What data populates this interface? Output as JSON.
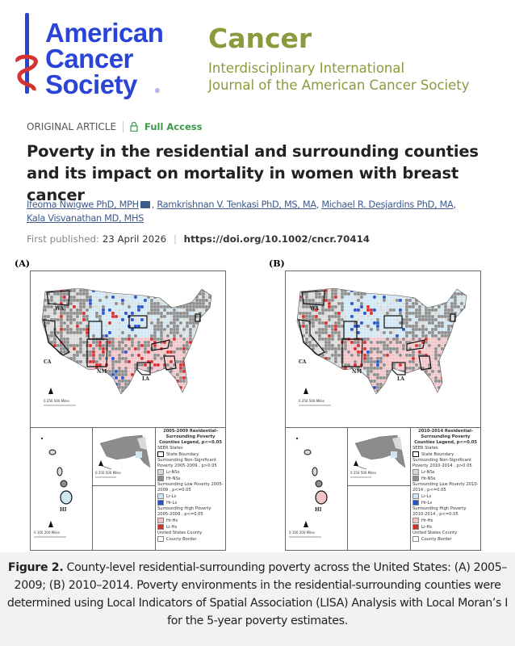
{
  "society_logo": {
    "lines": [
      "American",
      "Cancer",
      "Society"
    ],
    "registered": "®",
    "colors": {
      "text": "#2a44d8",
      "snake": "#d4332f"
    }
  },
  "journal_logo": {
    "name": "Cancer",
    "subtitle_1": "Interdisciplinary International",
    "subtitle_2": "Journal of the American Cancer Society",
    "color": "#8a9a3c"
  },
  "article": {
    "type": "ORIGINAL ARTICLE",
    "access": "Full Access",
    "title": "Poverty in the residential and surrounding counties and its impact on mortality in women with breast cancer",
    "authors": [
      "Ifeoma Nwigwe PhD, MPH",
      "Ramkrishnan V. Tenkasi PhD, MS, MA",
      "Michael R. Desjardins PhD, MA",
      "Kala Visvanathan MD, MHS"
    ],
    "published_label": "First published:",
    "published_date": "23 April 2026",
    "doi": "https://doi.org/10.1002/cncr.70414"
  },
  "figure": {
    "colors": {
      "lr_nss": "#d9d9d9",
      "hr_nss": "#8c8c8c",
      "lr_ls": "#cfe6f2",
      "hr_ls": "#2a52c8",
      "hr_hs": "#f1c3c7",
      "lr_hs": "#d42f2f",
      "state_boundary": "#111111"
    },
    "panels": [
      {
        "label": "(A)",
        "state_labels": [
          "WA",
          "CA",
          "NM",
          "LA",
          "HI"
        ],
        "scale_main": "0  250  500 Miles",
        "scale_alaska": "0  250 500 Miles",
        "scale_hawaii": "0  100  200 Miles",
        "legend": {
          "title": "2005-2009 Residential-Surrounding Poverty Counties Legend, p<=0.05",
          "seer_heading": "SEER States",
          "state_boundary": "State Boundary",
          "nonsig_heading": "Surrounding Non-Significant Poverty 2005-2009 , p>0.05",
          "lr_nss": "Lr-NSs",
          "hr_nss": "Hr-NSs",
          "low_heading": "Surrounding Low Poverty 2005-2009 , p<=0.05",
          "lr_ls": "Lr-Ls",
          "hr_ls": "Hr-Ls",
          "high_heading": "Surrounding High Poverty 2005-2009 , p<=0.05",
          "hr_hs": "Hr-Hs",
          "lr_hs": "Lr-Hs",
          "county_heading": "United States County",
          "county_border": "County Border"
        }
      },
      {
        "label": "(B)",
        "state_labels": [
          "WA",
          "CA",
          "NM",
          "LA",
          "HI"
        ],
        "scale_main": "0  250  500 Miles",
        "scale_alaska": "0  250 500 Miles",
        "scale_hawaii": "0  100  200 Miles",
        "legend": {
          "title": "2010-2014 Residential-Surrounding Poverty Counties Legend, p<=0.05",
          "seer_heading": "SEER States",
          "state_boundary": "State Boundary",
          "nonsig_heading": "Surrounding Non-Significant Poverty 2010-2014 , p>0.05",
          "lr_nss": "Lr-NSs",
          "hr_nss": "Hr-NSs",
          "low_heading": "Surrounding Low Poverty 2010-2014 , p<=0.05",
          "lr_ls": "Lr-Ls",
          "hr_ls": "Hr-Ls",
          "high_heading": "Surrounding High Poverty 2010-2014 , p<=0.05",
          "hr_hs": "Hr-Hs",
          "lr_hs": "Lr-Hs",
          "county_heading": "United States County",
          "county_border": "County Border"
        }
      }
    ],
    "caption_label": "Figure 2.",
    "caption_text": "County-level residential-surrounding poverty across the United States: (A) 2005–2009; (B) 2010–2014. Poverty environments in the residential-surrounding counties were determined using Local Indicators of Spatial Association (LISA) Analysis with Local Moran’s I for the 5-year poverty estimates."
  }
}
